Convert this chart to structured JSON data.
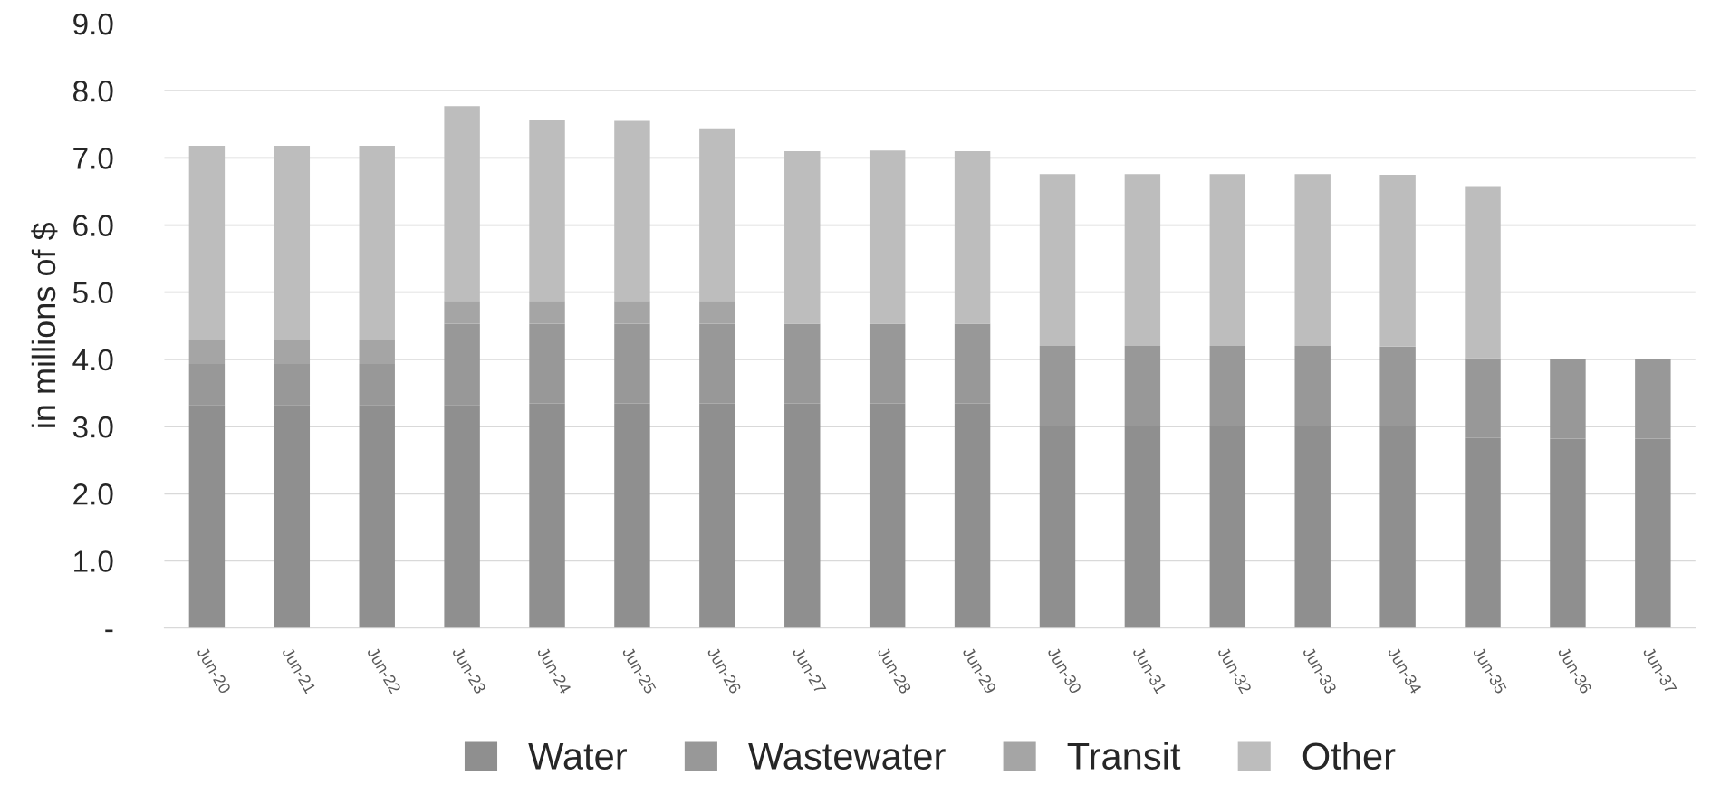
{
  "chart_data": {
    "type": "bar",
    "stacked": true,
    "ylabel": "in millions of $",
    "categories": [
      "Jun-20",
      "Jun-21",
      "Jun-22",
      "Jun-23",
      "Jun-24",
      "Jun-25",
      "Jun-26",
      "Jun-27",
      "Jun-28",
      "Jun-29",
      "Jun-30",
      "Jun-31",
      "Jun-32",
      "Jun-33",
      "Jun-34",
      "Jun-35",
      "Jun-36",
      "Jun-37"
    ],
    "series": [
      {
        "name": "Water",
        "color": "#8f8f8f",
        "values": [
          3.32,
          3.32,
          3.32,
          3.32,
          3.34,
          3.34,
          3.34,
          3.34,
          3.34,
          3.34,
          3.01,
          3.01,
          3.01,
          3.01,
          3.0,
          2.83,
          2.82,
          2.82
        ]
      },
      {
        "name": "Wastewater",
        "color": "#989898",
        "values": [
          0.61,
          0.61,
          0.61,
          1.21,
          1.19,
          1.19,
          1.19,
          1.19,
          1.19,
          1.19,
          1.19,
          1.19,
          1.19,
          1.19,
          1.19,
          1.19,
          1.19,
          1.19
        ]
      },
      {
        "name": "Transit",
        "color": "#a5a5a5",
        "values": [
          0.36,
          0.36,
          0.36,
          0.34,
          0.34,
          0.34,
          0.34,
          null,
          null,
          null,
          null,
          null,
          null,
          null,
          null,
          null,
          null,
          null
        ]
      },
      {
        "name": "Other",
        "color": "#bdbdbd",
        "values": [
          2.89,
          2.89,
          2.89,
          2.9,
          2.69,
          2.68,
          2.57,
          2.57,
          2.58,
          2.57,
          2.56,
          2.56,
          2.56,
          2.56,
          2.56,
          2.56,
          null,
          null
        ]
      }
    ],
    "ylim": [
      0,
      9
    ],
    "yticks": [
      {
        "value": 0,
        "label": "-"
      },
      {
        "value": 1,
        "label": "1.0"
      },
      {
        "value": 2,
        "label": "2.0"
      },
      {
        "value": 3,
        "label": "3.0"
      },
      {
        "value": 4,
        "label": "4.0"
      },
      {
        "value": 5,
        "label": "5.0"
      },
      {
        "value": 6,
        "label": "6.0"
      },
      {
        "value": 7,
        "label": "7.0"
      },
      {
        "value": 8,
        "label": "8.0"
      },
      {
        "value": 9,
        "label": "9.0"
      }
    ],
    "grid": "y",
    "legend": "bottom"
  }
}
